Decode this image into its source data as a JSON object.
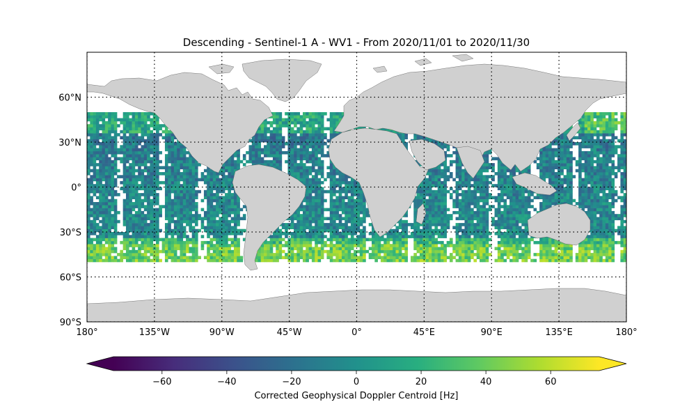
{
  "title": "Descending - Sentinel-1 A - WV1 - From 2020/11/01 to 2020/11/30",
  "map": {
    "projection": "plate-carree",
    "lon_range": [
      -180,
      180
    ],
    "lat_range": [
      -90,
      90
    ],
    "grid": "dotted",
    "lon_ticks": [
      {
        "value": -180,
        "label": "180°"
      },
      {
        "value": -135,
        "label": "135°W"
      },
      {
        "value": -90,
        "label": "90°W"
      },
      {
        "value": -45,
        "label": "45°W"
      },
      {
        "value": 0,
        "label": "0°"
      },
      {
        "value": 45,
        "label": "45°E"
      },
      {
        "value": 90,
        "label": "90°E"
      },
      {
        "value": 135,
        "label": "135°E"
      },
      {
        "value": 180,
        "label": "180°"
      }
    ],
    "lat_ticks": [
      {
        "value": 60,
        "label": "60°N"
      },
      {
        "value": 30,
        "label": "30°N"
      },
      {
        "value": 0,
        "label": "0°"
      },
      {
        "value": -30,
        "label": "30°S"
      },
      {
        "value": -60,
        "label": "60°S"
      },
      {
        "value": -90,
        "label": "90°S"
      }
    ],
    "land_color": "#d0d0d0",
    "coverage_lat_range": [
      -50,
      50
    ]
  },
  "colorbar": {
    "label": "Corrected Geophysical Doppler Centroid [Hz]",
    "colormap": "viridis",
    "range": [
      -75,
      75
    ],
    "ticks": [
      {
        "value": -60,
        "label": "−60"
      },
      {
        "value": -40,
        "label": "−40"
      },
      {
        "value": -20,
        "label": "−20"
      },
      {
        "value": 0,
        "label": "0"
      },
      {
        "value": 20,
        "label": "20"
      },
      {
        "value": 40,
        "label": "40"
      },
      {
        "value": 60,
        "label": "60"
      }
    ],
    "extend": "both"
  }
}
